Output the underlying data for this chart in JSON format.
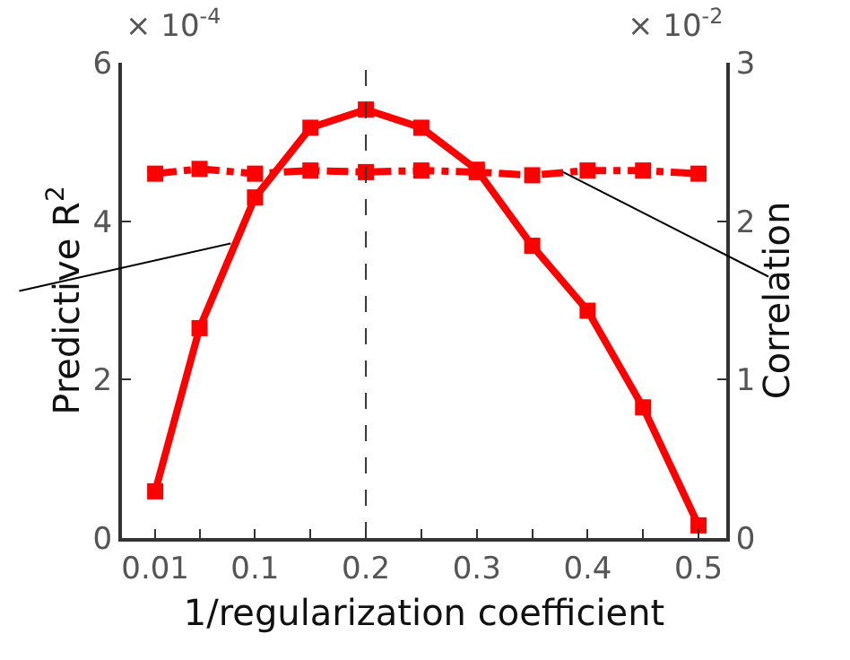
{
  "chart_data": {
    "type": "line",
    "xlabel": "1/regularization coefficient",
    "ylabel": "Predictive R$^{2}$",
    "y2label": "Correlation",
    "x": [
      0.01,
      0.05,
      0.1,
      0.15,
      0.2,
      0.25,
      0.3,
      0.35,
      0.4,
      0.45,
      0.5
    ],
    "series": [
      {
        "color": "#ff0000",
        "line_style": "solid",
        "values": [
          0.59,
          2.65,
          4.3,
          5.18,
          5.41,
          5.18,
          4.65,
          3.69,
          2.87,
          1.65,
          0.16
        ]
      },
      {
        "color": "#ff0000",
        "line_style": "dashed",
        "axis": "y2",
        "values": [
          2.3,
          2.33,
          2.3,
          2.32,
          2.31,
          2.32,
          2.31,
          2.29,
          2.32,
          2.32,
          2.3
        ]
      }
    ],
    "marker": "square",
    "xlim": [
      -0.02,
      0.525
    ],
    "xticks": [
      0.01,
      {
        "value": 0.05,
        "label": null
      },
      0.1,
      {
        "value": 0.15,
        "label": null
      },
      0.2,
      {
        "value": 0.25,
        "label": null
      },
      0.3,
      {
        "value": 0.35,
        "label": null
      },
      0.4,
      {
        "value": 0.45,
        "label": null
      },
      0.5
    ],
    "ylim": [
      0,
      6
    ],
    "yticks": [
      0,
      2,
      4,
      6
    ],
    "y2lim": [
      0,
      3
    ],
    "y2ticks": [
      0,
      1,
      2,
      3
    ],
    "ref_lines": [
      {
        "axis": "x",
        "value": 0.2,
        "color": "#333333",
        "line_style": "dashed"
      }
    ],
    "annotations": [
      "× 10$^{-4}$",
      "× 10$^{-2}$"
    ]
  }
}
